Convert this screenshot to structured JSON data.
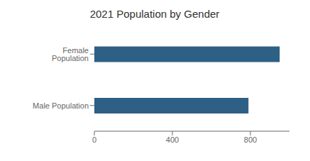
{
  "chart_data": {
    "type": "bar",
    "orientation": "horizontal",
    "title": "2021 Population by Gender",
    "categories": [
      "Female Population",
      "Male Population"
    ],
    "values": [
      950,
      790
    ],
    "color": "#2E5F85",
    "xlim": [
      0,
      1000
    ],
    "xticks": [
      0,
      400,
      800
    ],
    "grid": false
  }
}
